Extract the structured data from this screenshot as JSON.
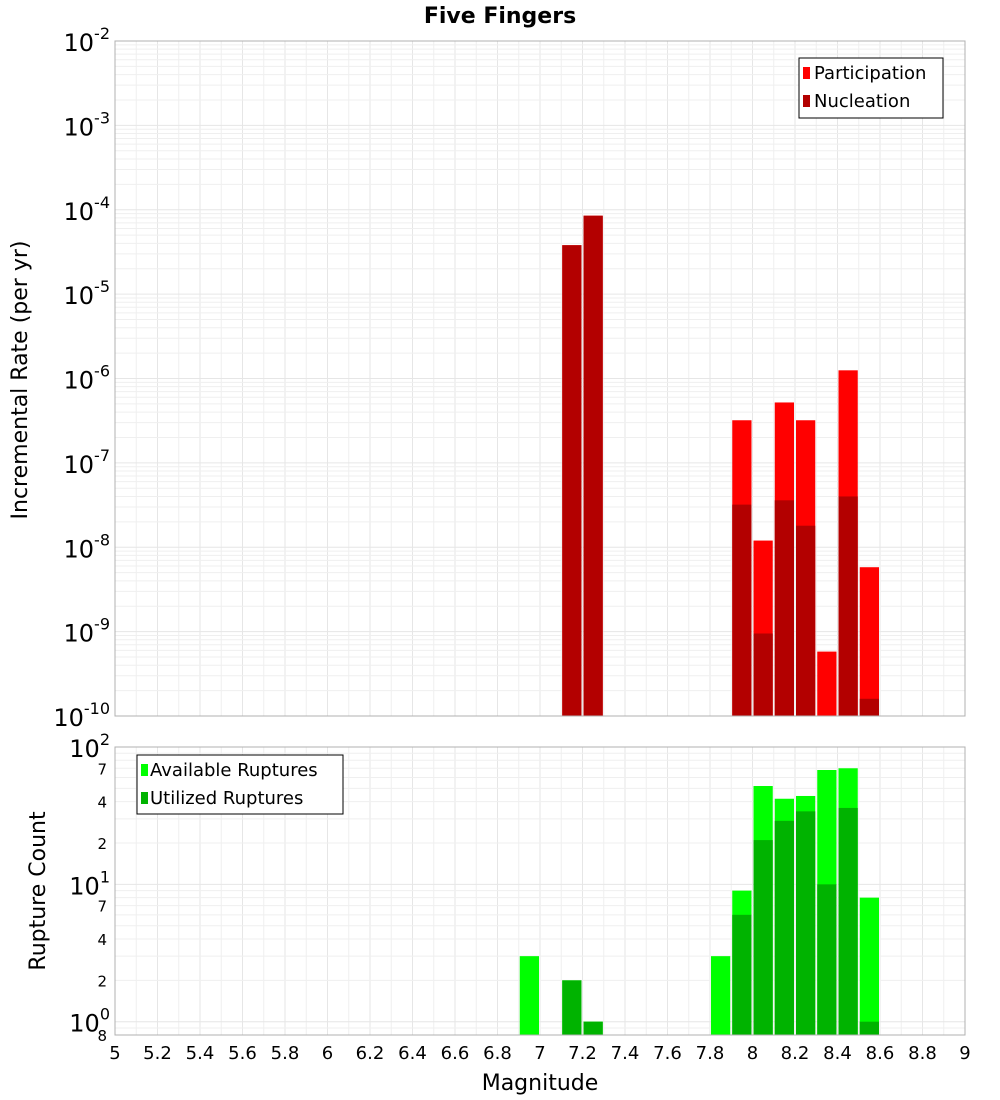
{
  "chart_data": [
    {
      "type": "bar",
      "title": "Five Fingers",
      "xlabel": "",
      "ylabel": "Incremental Rate (per yr)",
      "y_scale": "log",
      "ylim": [
        1e-10,
        0.01
      ],
      "xlim": [
        5,
        9
      ],
      "y_tick_labels": [
        {
          "base": "10",
          "exp": "-2",
          "value": 0.01
        },
        {
          "base": "10",
          "exp": "-3",
          "value": 0.001
        },
        {
          "base": "10",
          "exp": "-4",
          "value": 0.0001
        },
        {
          "base": "10",
          "exp": "-5",
          "value": 1e-05
        },
        {
          "base": "10",
          "exp": "-6",
          "value": 1e-06
        },
        {
          "base": "10",
          "exp": "-7",
          "value": 1e-07
        },
        {
          "base": "10",
          "exp": "-8",
          "value": 1e-08
        },
        {
          "base": "10",
          "exp": "-9",
          "value": 1e-09
        },
        {
          "base": "10",
          "exp": "-10",
          "value": 1e-10
        }
      ],
      "grid": true,
      "legend_position": "top-right",
      "bar_width": 0.1,
      "series": [
        {
          "name": "Participation",
          "color": "#ff0000",
          "x": [
            7.15,
            7.25,
            7.95,
            8.05,
            8.15,
            8.25,
            8.35,
            8.45,
            8.55
          ],
          "values": [
            3.8e-05,
            8.5e-05,
            3.2e-07,
            1.2e-08,
            5.2e-07,
            3.2e-07,
            5.8e-10,
            1.25e-06,
            5.8e-09
          ]
        },
        {
          "name": "Nucleation",
          "color": "#b30000",
          "x": [
            7.15,
            7.25,
            7.95,
            8.05,
            8.15,
            8.25,
            8.45,
            8.55
          ],
          "values": [
            3.8e-05,
            8.5e-05,
            3.2e-08,
            9.5e-10,
            3.6e-08,
            1.8e-08,
            4e-08,
            1.6e-10
          ]
        }
      ]
    },
    {
      "type": "bar",
      "title": "",
      "xlabel": "Magnitude",
      "ylabel": "Rupture Count",
      "y_scale": "log",
      "ylim": [
        0.8,
        100
      ],
      "xlim": [
        5,
        9
      ],
      "x_ticks": [
        "5",
        "5.2",
        "5.4",
        "5.6",
        "5.8",
        "6",
        "6.2",
        "6.4",
        "6.6",
        "6.8",
        "7",
        "7.2",
        "7.4",
        "7.6",
        "7.8",
        "8",
        "8.2",
        "8.4",
        "8.6",
        "8.8",
        "9"
      ],
      "y_tick_labels": [
        {
          "base": "10",
          "exp": "2",
          "value": 100
        },
        {
          "base": "10",
          "exp": "1",
          "value": 10
        },
        {
          "base": "10",
          "exp": "0",
          "value": 1
        }
      ],
      "y_minor_labels": [
        {
          "label": "7",
          "value": 70
        },
        {
          "label": "4",
          "value": 40
        },
        {
          "label": "2",
          "value": 20
        },
        {
          "label": "7",
          "value": 7
        },
        {
          "label": "4",
          "value": 4
        },
        {
          "label": "2",
          "value": 2
        },
        {
          "label": "8",
          "value": 0.8
        }
      ],
      "grid": true,
      "legend_position": "top-left",
      "bar_width": 0.1,
      "series": [
        {
          "name": "Available Ruptures",
          "color": "#00ff00",
          "x": [
            6.95,
            7.15,
            7.25,
            7.85,
            7.95,
            8.05,
            8.15,
            8.25,
            8.35,
            8.45,
            8.55
          ],
          "values": [
            3,
            2,
            1,
            3,
            9,
            52,
            42,
            44,
            68,
            70,
            8
          ]
        },
        {
          "name": "Utilized Ruptures",
          "color": "#00b300",
          "x": [
            7.15,
            7.25,
            7.95,
            8.05,
            8.15,
            8.25,
            8.35,
            8.45,
            8.55
          ],
          "values": [
            2,
            1,
            6,
            21,
            29,
            34,
            10,
            36,
            1
          ]
        }
      ]
    }
  ]
}
